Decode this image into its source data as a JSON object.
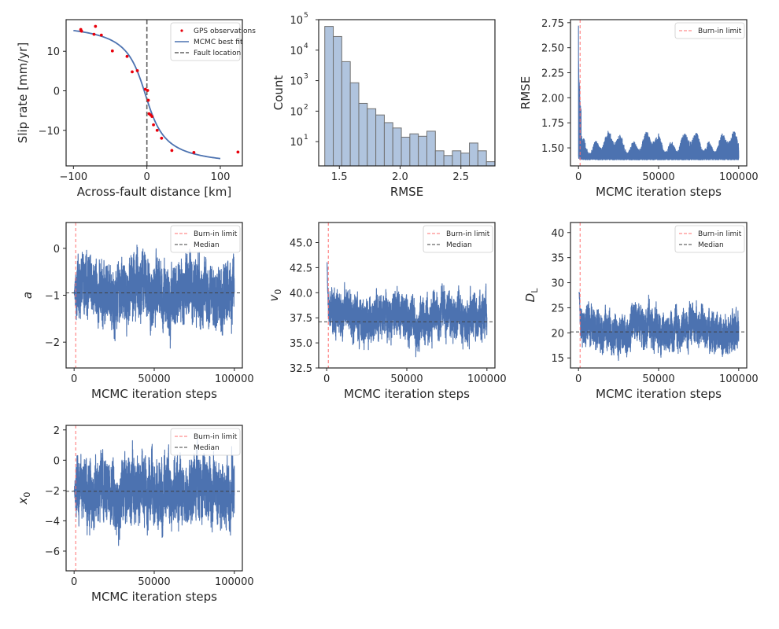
{
  "chart_data": [
    {
      "type": "scatter",
      "id": "profile",
      "xlabel": "Across-fault distance [km]",
      "ylabel": "Slip rate [mm/yr]",
      "xlim": [
        -110,
        130
      ],
      "ylim": [
        -19,
        18
      ],
      "xticks": [
        -100,
        0,
        100
      ],
      "xtick_labels": [
        "−100",
        "0",
        "100"
      ],
      "yticks": [
        10,
        0,
        -10
      ],
      "ytick_labels": [
        "10",
        "0",
        "−10"
      ],
      "fault_x": 0,
      "observations_x": [
        -90,
        -89,
        -72,
        -70,
        -62,
        -47,
        -27,
        -20,
        -13,
        -2,
        1,
        2,
        3,
        5,
        7,
        9,
        14,
        20,
        34,
        64,
        124
      ],
      "observations_y": [
        15.5,
        15.1,
        14.3,
        16.3,
        14.1,
        10.1,
        8.7,
        4.8,
        5.1,
        0.4,
        0.1,
        -2.4,
        -5.8,
        -6.1,
        -6.5,
        -8.6,
        -10,
        -12,
        -15.1,
        -15.6,
        -15.5
      ],
      "fit_params": {
        "a": -0.97,
        "v0": 37.1,
        "DL": 20.2,
        "x0": -2.1,
        "offset": -0.9
      },
      "fit_x_range": [
        -100,
        100
      ],
      "legend": [
        "GPS observations",
        "MCMC best fit",
        "Fault location"
      ]
    },
    {
      "type": "bar",
      "id": "histogram",
      "xlabel": "RMSE",
      "ylabel": "Count",
      "yscale": "log",
      "xlim": [
        1.33,
        2.78
      ],
      "ylim": [
        1.6,
        100000
      ],
      "xticks": [
        1.5,
        2.0,
        2.5
      ],
      "xtick_labels": [
        "1.5",
        "2.0",
        "2.5"
      ],
      "yticks": [
        10,
        100,
        1000,
        10000,
        100000
      ],
      "ytick_base": "10",
      "ytick_exponents": [
        "1",
        "2",
        "3",
        "4",
        "5"
      ],
      "bin_edges": [
        1.38,
        1.45,
        1.52,
        1.59,
        1.66,
        1.73,
        1.8,
        1.87,
        1.94,
        2.01,
        2.08,
        2.15,
        2.22,
        2.29,
        2.36,
        2.43,
        2.5,
        2.57,
        2.64,
        2.71
      ],
      "counts": [
        60000,
        28000,
        4200,
        850,
        180,
        120,
        75,
        42,
        28,
        14,
        18,
        15,
        22,
        5,
        3.5,
        5,
        4.2,
        9,
        5,
        2.2
      ]
    },
    {
      "type": "line",
      "id": "trace_rmse",
      "xlabel": "MCMC iteration steps",
      "ylabel": "RMSE",
      "xlim": [
        -5000,
        105000
      ],
      "ylim": [
        1.32,
        2.78
      ],
      "xticks": [
        0,
        50000,
        100000
      ],
      "xtick_labels": [
        "0",
        "50000",
        "100000"
      ],
      "yticks": [
        1.5,
        1.75,
        2.0,
        2.25,
        2.5,
        2.75
      ],
      "ytick_labels": [
        "1.50",
        "1.75",
        "2.00",
        "2.25",
        "2.50",
        "2.75"
      ],
      "burnin": 1000,
      "trace": {
        "start": 2.72,
        "floor": 1.38,
        "band_high": 1.62,
        "kind": "rmse"
      },
      "legend": [
        "Burn-in limit"
      ]
    },
    {
      "type": "line",
      "id": "trace_a",
      "xlabel": "MCMC iteration steps",
      "ylabel": "a",
      "ylabel_italic": true,
      "xlim": [
        -5000,
        105000
      ],
      "ylim": [
        -2.55,
        0.55
      ],
      "xticks": [
        0,
        50000,
        100000
      ],
      "xtick_labels": [
        "0",
        "50000",
        "100000"
      ],
      "yticks": [
        0,
        -1,
        -2
      ],
      "ytick_labels": [
        "0",
        "−1",
        "−2"
      ],
      "burnin": 1000,
      "median": -0.95,
      "trace": {
        "start": -0.95,
        "center": -0.95,
        "spread": 0.45,
        "min": -2.45,
        "max": 0.45,
        "kind": "param"
      },
      "legend": [
        "Burn-in limit",
        "Median"
      ]
    },
    {
      "type": "line",
      "id": "trace_v0",
      "xlabel": "MCMC iteration steps",
      "ylabel": "v",
      "ylabel_sub": "0",
      "xlim": [
        -5000,
        105000
      ],
      "ylim": [
        32.5,
        47.0
      ],
      "xticks": [
        0,
        50000,
        100000
      ],
      "xtick_labels": [
        "0",
        "50000",
        "100000"
      ],
      "yticks": [
        32.5,
        35.0,
        37.5,
        40.0,
        42.5,
        45.0
      ],
      "ytick_labels": [
        "32.5",
        "35.0",
        "37.5",
        "40.0",
        "42.5",
        "45.0"
      ],
      "burnin": 1000,
      "median": 37.1,
      "trace": {
        "start": 46.8,
        "center": 37.6,
        "spread": 1.5,
        "min": 33.5,
        "max": 43.0,
        "kind": "param"
      },
      "legend": [
        "Burn-in limit",
        "Median"
      ]
    },
    {
      "type": "line",
      "id": "trace_dl",
      "xlabel": "MCMC iteration steps",
      "ylabel": "D",
      "ylabel_sub": "L",
      "xlim": [
        -5000,
        105000
      ],
      "ylim": [
        13.0,
        42.0
      ],
      "xticks": [
        0,
        50000,
        100000
      ],
      "xtick_labels": [
        "0",
        "50000",
        "100000"
      ],
      "yticks": [
        15,
        20,
        25,
        30,
        35,
        40
      ],
      "ytick_labels": [
        "15",
        "20",
        "25",
        "30",
        "35",
        "40"
      ],
      "burnin": 1000,
      "median": 20.2,
      "trace": {
        "start": 41.0,
        "center": 20.5,
        "spread": 2.6,
        "min": 14.5,
        "max": 28.0,
        "kind": "param"
      },
      "legend": [
        "Burn-in limit",
        "Median"
      ]
    },
    {
      "type": "line",
      "id": "trace_x0",
      "xlabel": "MCMC iteration steps",
      "ylabel": "x",
      "ylabel_sub": "0",
      "xlim": [
        -5000,
        105000
      ],
      "ylim": [
        -7.3,
        2.3
      ],
      "xticks": [
        0,
        50000,
        100000
      ],
      "xtick_labels": [
        "0",
        "50000",
        "100000"
      ],
      "yticks": [
        2,
        0,
        -2,
        -4,
        -6
      ],
      "ytick_labels": [
        "2",
        "0",
        "−2",
        "−4",
        "−6"
      ],
      "burnin": 1000,
      "median": -2.05,
      "trace": {
        "start": -2.0,
        "center": -2.1,
        "spread": 1.45,
        "min": -6.9,
        "max": 1.9,
        "kind": "param"
      },
      "legend": [
        "Burn-in limit",
        "Median"
      ]
    }
  ],
  "colors": {
    "trace": "#4c72b0",
    "fit": "#4c72b0",
    "obs": "#e8000b",
    "burnin": "#ff7070",
    "median": "#404040",
    "fault": "#606060",
    "hist_fill": "#b0c4de",
    "hist_edge": "#707070",
    "spine": "#262626"
  }
}
